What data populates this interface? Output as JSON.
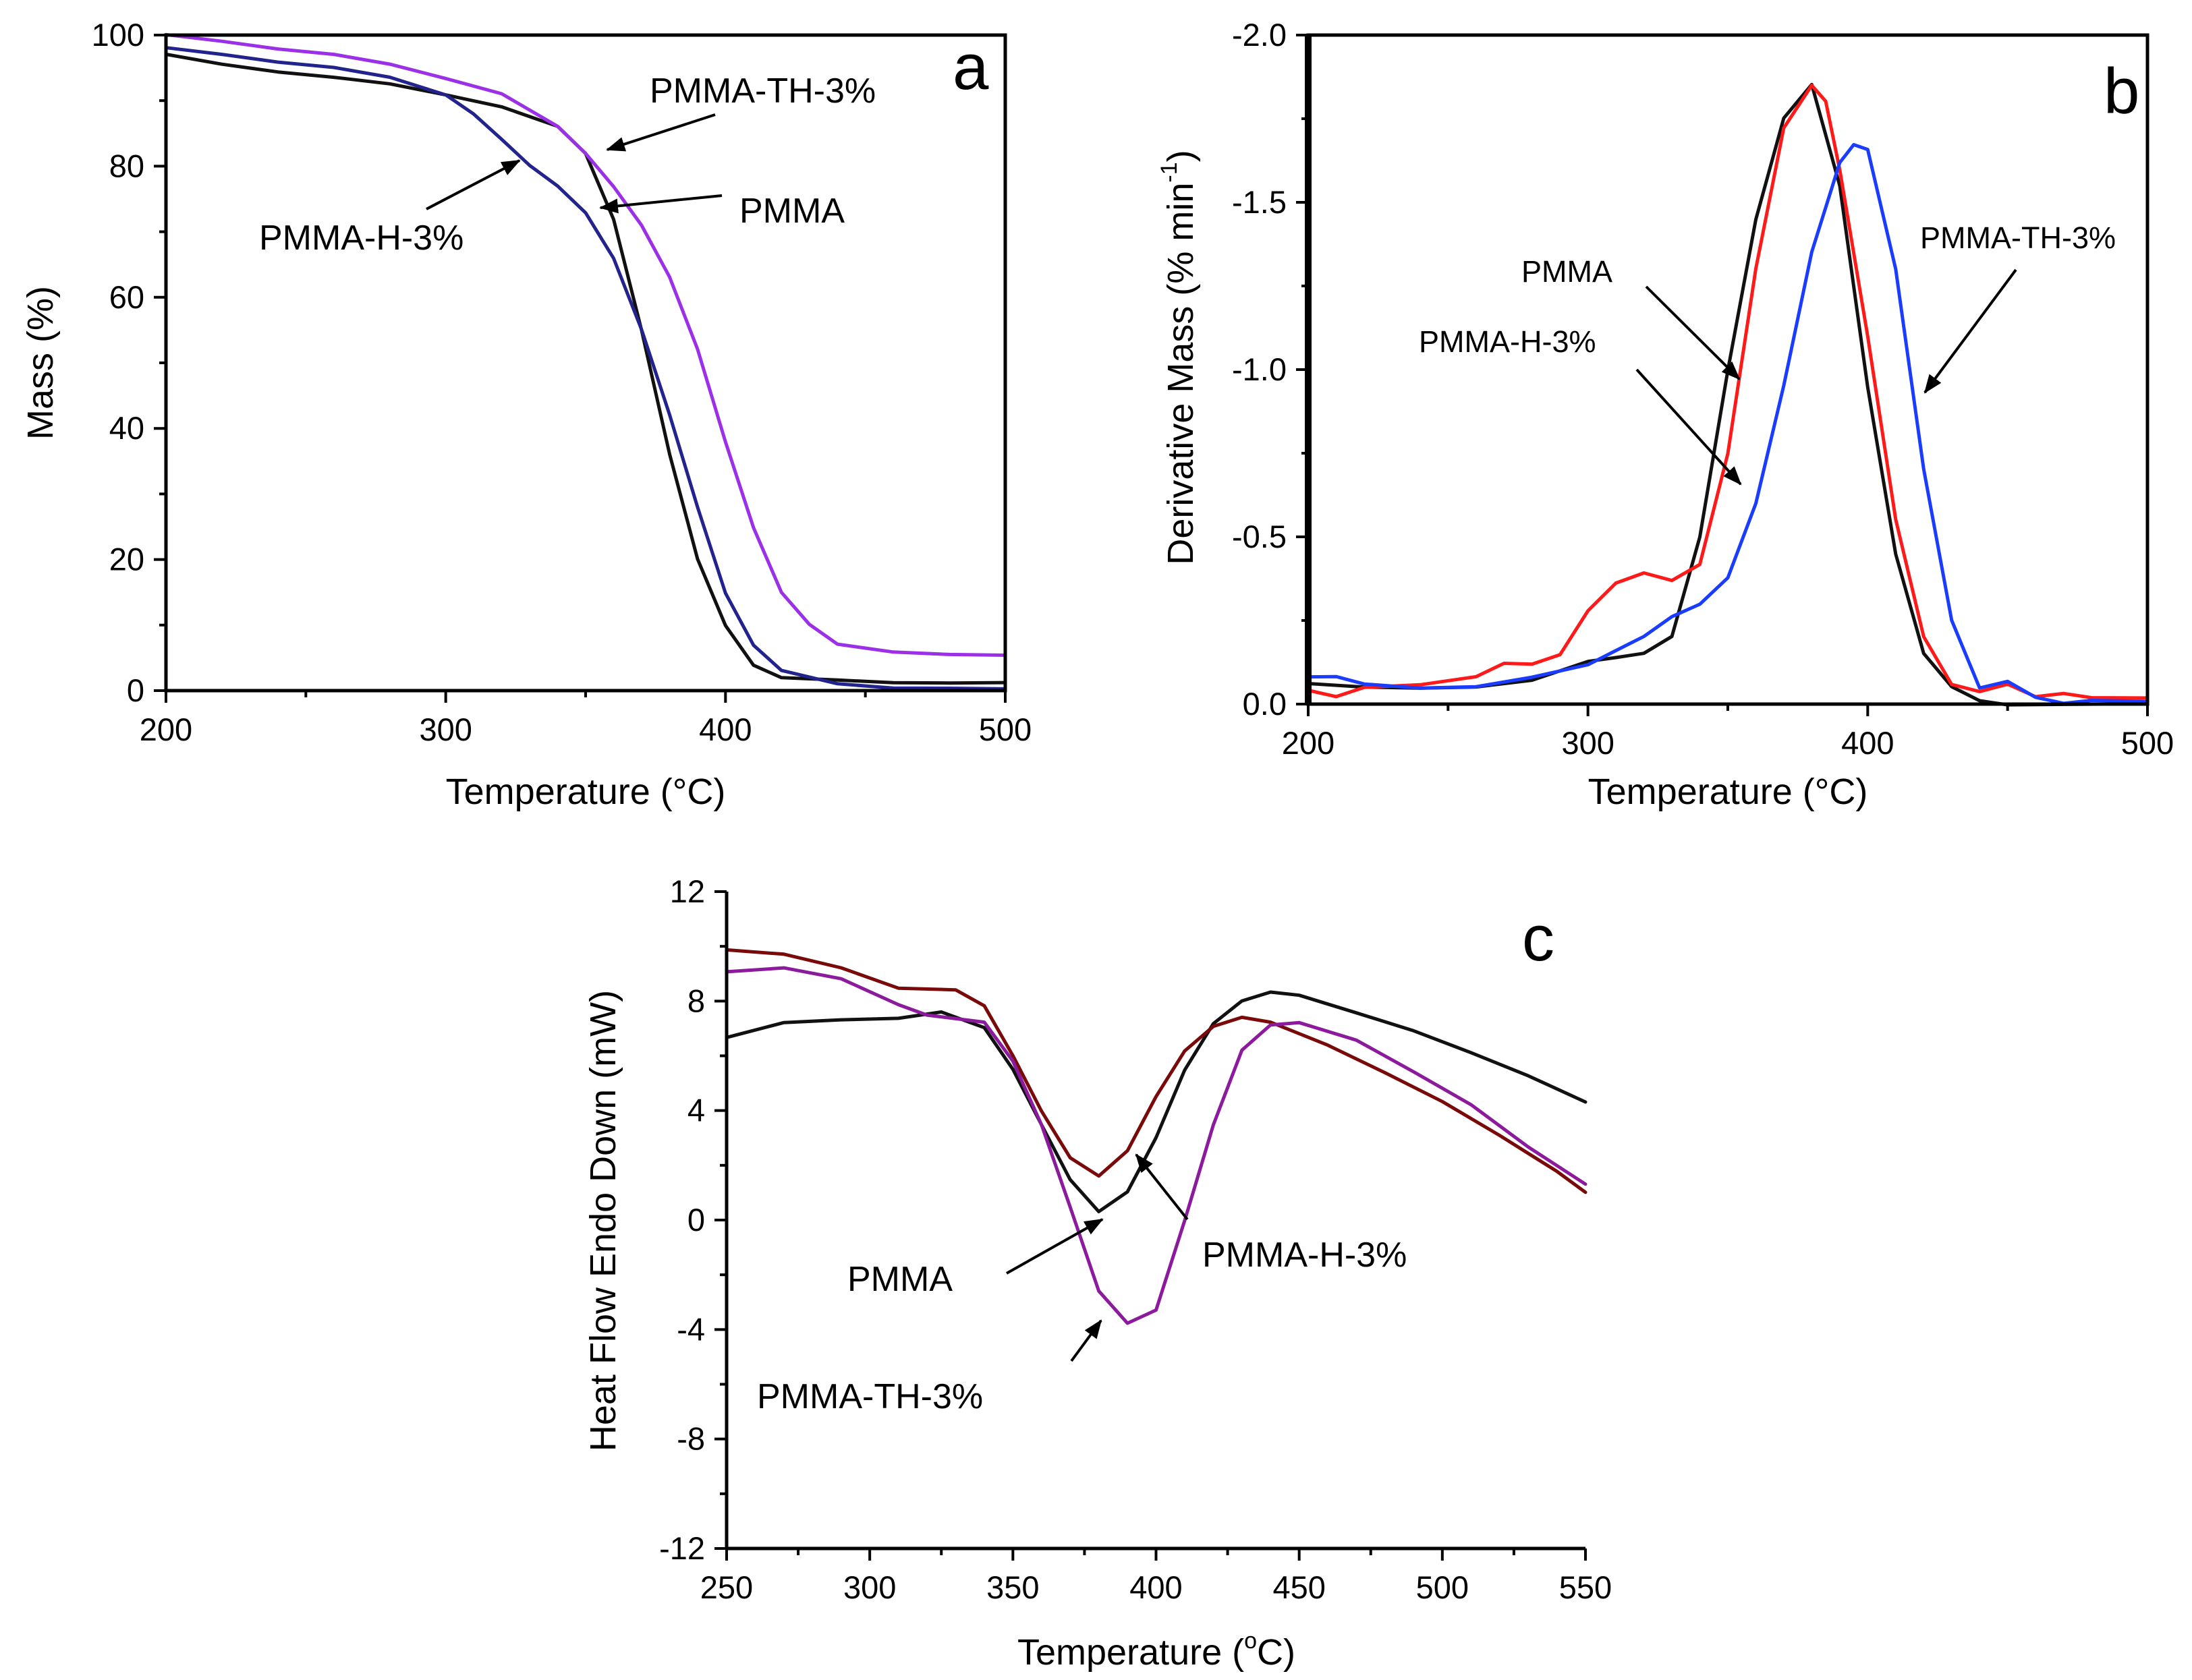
{
  "colors": {
    "black": "#111111",
    "purple": "#9b30e8",
    "navy": "#23238e",
    "red": "#ff1a1a",
    "blue": "#1a3cff",
    "darkred": "#7a0a0a",
    "violet": "#8c1a9c"
  },
  "chart_data": [
    {
      "type": "line",
      "panel": "a",
      "xlabel": "Temperature (°C)",
      "ylabel": "Mass (%)",
      "xlim": [
        200,
        500
      ],
      "ylim": [
        0,
        100
      ],
      "xticks": [
        "200",
        "300",
        "400",
        "500"
      ],
      "yticks": [
        "0",
        "20",
        "40",
        "60",
        "80",
        "100"
      ],
      "series": [
        {
          "name": "PMMA",
          "color": "#111111",
          "x": [
            200,
            220,
            240,
            260,
            280,
            300,
            320,
            340,
            350,
            360,
            370,
            380,
            390,
            400,
            410,
            420,
            440,
            460,
            480,
            500
          ],
          "y": [
            97,
            95.5,
            94.5,
            93.5,
            92.5,
            91,
            89,
            86,
            82,
            72,
            55,
            36,
            20,
            10,
            4,
            2,
            1.5,
            1.3,
            1.2,
            1.1
          ]
        },
        {
          "name": "PMMA-H-3%",
          "color": "#23238e",
          "x": [
            200,
            220,
            240,
            260,
            280,
            300,
            310,
            320,
            330,
            340,
            350,
            360,
            370,
            380,
            390,
            400,
            410,
            420,
            440,
            460,
            480,
            500
          ],
          "y": [
            98,
            97,
            96,
            95,
            93.5,
            91,
            88,
            84,
            80,
            77,
            73,
            66,
            55,
            42,
            28,
            15,
            7,
            3,
            1,
            0.5,
            0.3,
            0.2
          ]
        },
        {
          "name": "PMMA-TH-3%",
          "color": "#9b30e8",
          "x": [
            200,
            220,
            240,
            260,
            280,
            300,
            320,
            340,
            350,
            360,
            370,
            380,
            390,
            400,
            410,
            420,
            430,
            440,
            460,
            480,
            500
          ],
          "y": [
            100,
            99,
            98,
            97,
            95.5,
            93.5,
            91,
            86,
            82,
            77,
            71,
            63,
            52,
            38,
            25,
            15,
            10,
            7,
            6,
            5.5,
            5.3
          ]
        }
      ],
      "annotations": [
        "PMMA-TH-3%",
        "PMMA",
        "PMMA-H-3%"
      ]
    },
    {
      "type": "line",
      "panel": "b",
      "xlabel": "Temperature (°C)",
      "ylabel": "Derivative Mass (% min",
      "ylabel_sup": "-1",
      "ylabel_end": ")",
      "xlim": [
        200,
        500
      ],
      "ylim": [
        0,
        -2.0
      ],
      "xticks": [
        "200",
        "300",
        "400",
        "500"
      ],
      "yticks": [
        "0.0",
        "-0.5",
        "-1.0",
        "-1.5",
        "-2.0"
      ],
      "series": [
        {
          "name": "PMMA",
          "color": "#111111",
          "x": [
            200,
            220,
            240,
            260,
            280,
            300,
            310,
            320,
            330,
            340,
            350,
            360,
            370,
            380,
            390,
            400,
            410,
            420,
            430,
            440,
            450,
            500
          ],
          "y": [
            -0.06,
            -0.05,
            -0.05,
            -0.05,
            -0.07,
            -0.13,
            -0.14,
            -0.15,
            -0.2,
            -0.5,
            -1.0,
            -1.45,
            -1.75,
            -1.85,
            -1.55,
            -0.95,
            -0.45,
            -0.15,
            -0.05,
            -0.01,
            0,
            0
          ]
        },
        {
          "name": "PMMA-H-3%",
          "color": "#ff1a1a",
          "x": [
            200,
            210,
            220,
            240,
            260,
            270,
            280,
            290,
            300,
            310,
            320,
            330,
            340,
            350,
            360,
            370,
            380,
            385,
            390,
            400,
            410,
            420,
            430,
            440,
            450,
            460,
            470,
            480,
            500
          ],
          "y": [
            -0.04,
            -0.02,
            -0.05,
            -0.06,
            -0.08,
            -0.12,
            -0.12,
            -0.15,
            -0.28,
            -0.36,
            -0.39,
            -0.37,
            -0.42,
            -0.75,
            -1.3,
            -1.72,
            -1.85,
            -1.8,
            -1.6,
            -1.1,
            -0.55,
            -0.2,
            -0.06,
            -0.04,
            -0.06,
            -0.02,
            -0.03,
            -0.02,
            -0.02
          ]
        },
        {
          "name": "PMMA-TH-3%",
          "color": "#1a3cff",
          "x": [
            200,
            210,
            220,
            240,
            260,
            280,
            300,
            310,
            320,
            330,
            340,
            350,
            360,
            370,
            380,
            390,
            395,
            400,
            410,
            420,
            430,
            440,
            450,
            460,
            470,
            480,
            500
          ],
          "y": [
            -0.08,
            -0.08,
            -0.06,
            -0.05,
            -0.05,
            -0.08,
            -0.12,
            -0.16,
            -0.2,
            -0.26,
            -0.3,
            -0.38,
            -0.6,
            -0.95,
            -1.35,
            -1.62,
            -1.67,
            -1.66,
            -1.3,
            -0.7,
            -0.25,
            -0.05,
            -0.07,
            -0.02,
            0,
            -0.01,
            -0.01
          ]
        }
      ],
      "annotations": [
        "PMMA",
        "PMMA-H-3%",
        "PMMA-TH-3%"
      ]
    },
    {
      "type": "line",
      "panel": "c",
      "xlabel": "Temperature (",
      "xlabel_sup": "o",
      "xlabel_end": "C)",
      "ylabel": "Heat Flow Endo Down (mW)",
      "xlim": [
        250,
        550
      ],
      "ylim": [
        -12,
        12
      ],
      "xticks": [
        "250",
        "300",
        "350",
        "400",
        "450",
        "500",
        "550"
      ],
      "yticks": [
        "-12",
        "-8",
        "-4",
        "0",
        "4",
        "8",
        "12"
      ],
      "series": [
        {
          "name": "PMMA",
          "color": "#111111",
          "x": [
            250,
            270,
            290,
            310,
            325,
            340,
            350,
            360,
            370,
            380,
            390,
            400,
            410,
            420,
            430,
            440,
            450,
            470,
            490,
            510,
            530,
            550
          ],
          "y": [
            6.7,
            7.2,
            7.3,
            7.4,
            7.6,
            7.0,
            5.5,
            3.5,
            1.5,
            0.3,
            1.0,
            3.0,
            5.5,
            7.2,
            8.0,
            8.3,
            8.2,
            7.6,
            6.9,
            6.1,
            5.3,
            4.3
          ]
        },
        {
          "name": "PMMA-H-3%",
          "color": "#7a0a0a",
          "x": [
            250,
            270,
            290,
            310,
            330,
            340,
            350,
            360,
            370,
            380,
            390,
            400,
            410,
            420,
            430,
            440,
            460,
            480,
            500,
            520,
            540,
            550
          ],
          "y": [
            9.9,
            9.7,
            9.2,
            8.5,
            8.4,
            7.8,
            6.0,
            4.0,
            2.3,
            1.6,
            2.5,
            4.5,
            6.2,
            7.1,
            7.4,
            7.2,
            6.4,
            5.4,
            4.3,
            3.1,
            1.8,
            1.0
          ]
        },
        {
          "name": "PMMA-TH-3%",
          "color": "#8c1a9c",
          "x": [
            250,
            270,
            290,
            310,
            320,
            340,
            350,
            360,
            370,
            380,
            390,
            400,
            410,
            420,
            430,
            440,
            450,
            470,
            490,
            510,
            530,
            550
          ],
          "y": [
            9.1,
            9.2,
            8.8,
            7.9,
            7.5,
            7.2,
            5.8,
            3.5,
            0.5,
            -2.6,
            -3.8,
            -3.3,
            0.0,
            3.5,
            6.2,
            7.1,
            7.2,
            6.6,
            5.4,
            4.2,
            2.7,
            1.3
          ]
        }
      ],
      "annotations": [
        "PMMA",
        "PMMA-H-3%",
        "PMMA-TH-3%"
      ]
    }
  ]
}
